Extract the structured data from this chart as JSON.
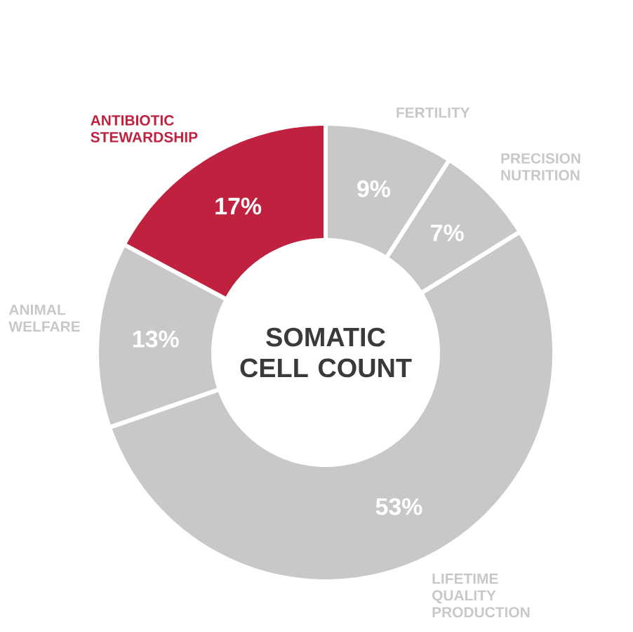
{
  "chart_data": {
    "type": "donut",
    "title": "SOMATIC CELL COUNT",
    "categories": [
      "FERTILITY",
      "PRECISION NUTRITION",
      "LIFETIME QUALITY PRODUCTION",
      "ANIMAL WELFARE",
      "ANTIBIOTIC STEWARDSHIP"
    ],
    "values": [
      9,
      7,
      53,
      13,
      17
    ],
    "value_labels": [
      "9%",
      "7%",
      "53%",
      "13%",
      "17%"
    ],
    "colors": [
      "#c8c8c8",
      "#c8c8c8",
      "#c8c8c8",
      "#c8c8c8",
      "#c0213f"
    ]
  }
}
